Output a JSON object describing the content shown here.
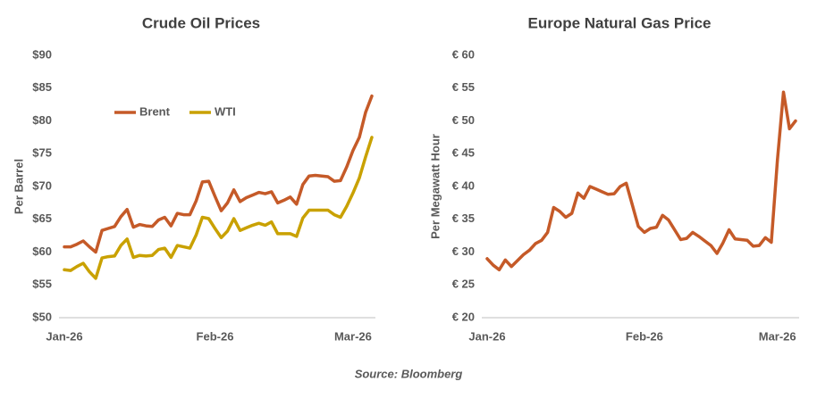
{
  "chart_data": [
    {
      "type": "line",
      "title": "Crude Oil Prices",
      "y_label": "Per Barrel",
      "categories": [
        "Jan-26",
        null,
        null,
        null,
        null,
        null,
        null,
        null,
        null,
        null,
        null,
        null,
        null,
        null,
        null,
        null,
        null,
        null,
        null,
        null,
        null,
        null,
        null,
        null,
        "Feb-26",
        null,
        null,
        null,
        null,
        null,
        null,
        null,
        null,
        null,
        null,
        null,
        null,
        null,
        null,
        null,
        null,
        null,
        null,
        null,
        null,
        null,
        "Mar-26",
        null,
        null,
        null
      ],
      "series": [
        {
          "name": "Brent",
          "color": "#c55a28",
          "values": [
            60.8,
            60.8,
            61.2,
            61.7,
            60.8,
            60.0,
            63.3,
            63.6,
            63.9,
            65.4,
            66.5,
            63.8,
            64.2,
            64.0,
            63.9,
            64.9,
            65.3,
            64.0,
            65.9,
            65.7,
            65.7,
            67.8,
            70.7,
            70.8,
            68.5,
            66.3,
            67.5,
            69.5,
            67.7,
            68.3,
            68.7,
            69.1,
            68.9,
            69.2,
            67.5,
            67.9,
            68.4,
            67.3,
            70.3,
            71.6,
            71.7,
            71.6,
            71.5,
            70.8,
            70.9,
            73.0,
            75.5,
            77.5,
            81.3,
            83.8
          ]
        },
        {
          "name": "WTI",
          "color": "#c9a100",
          "values": [
            57.3,
            57.2,
            57.8,
            58.3,
            57.0,
            56.0,
            59.1,
            59.3,
            59.4,
            61.0,
            62.0,
            59.2,
            59.5,
            59.4,
            59.5,
            60.4,
            60.6,
            59.2,
            61.0,
            60.8,
            60.6,
            62.6,
            65.3,
            65.1,
            63.6,
            62.2,
            63.2,
            65.1,
            63.3,
            63.7,
            64.1,
            64.4,
            64.1,
            64.6,
            62.8,
            62.8,
            62.8,
            62.4,
            65.2,
            66.4,
            66.4,
            66.4,
            66.4,
            65.7,
            65.3,
            67.0,
            69.0,
            71.3,
            74.5,
            77.5
          ]
        }
      ],
      "ylim": [
        50,
        90
      ],
      "yticks": [
        {
          "value": 50,
          "label": "$50"
        },
        {
          "value": 55,
          "label": "$55"
        },
        {
          "value": 60,
          "label": "$60"
        },
        {
          "value": 65,
          "label": "$65"
        },
        {
          "value": 70,
          "label": "$70"
        },
        {
          "value": 75,
          "label": "$75"
        },
        {
          "value": 80,
          "label": "$80"
        },
        {
          "value": 85,
          "label": "$85"
        },
        {
          "value": 90,
          "label": "$90"
        }
      ],
      "grid": false,
      "legend": "upper left"
    },
    {
      "type": "line",
      "title": "Europe Natural Gas Price",
      "y_label": "Per Megawatt Hour",
      "categories": [
        "Jan-26",
        null,
        null,
        null,
        null,
        null,
        null,
        null,
        null,
        null,
        null,
        null,
        null,
        null,
        null,
        null,
        null,
        null,
        null,
        null,
        null,
        null,
        null,
        null,
        null,
        null,
        "Feb-26",
        null,
        null,
        null,
        null,
        null,
        null,
        null,
        null,
        null,
        null,
        null,
        null,
        null,
        null,
        null,
        null,
        null,
        null,
        null,
        null,
        null,
        "Mar-26",
        null,
        null,
        null
      ],
      "series": [
        {
          "name": "Europe Natural Gas",
          "color": "#c55a28",
          "values": [
            29.0,
            28.0,
            27.3,
            28.8,
            27.8,
            28.7,
            29.6,
            30.3,
            31.3,
            31.8,
            33.0,
            36.8,
            36.2,
            35.3,
            35.9,
            39.0,
            38.2,
            40.0,
            39.6,
            39.2,
            38.8,
            38.9,
            40.0,
            40.5,
            37.2,
            33.9,
            33.0,
            33.6,
            33.8,
            35.6,
            34.9,
            33.4,
            31.9,
            32.1,
            33.0,
            32.4,
            31.7,
            31.0,
            29.8,
            31.4,
            33.4,
            32.0,
            31.9,
            31.8,
            30.9,
            31.0,
            32.2,
            31.5,
            44.0,
            54.4,
            48.8,
            50.0
          ]
        }
      ],
      "ylim": [
        20,
        60
      ],
      "yticks": [
        {
          "value": 20,
          "label": "€ 20"
        },
        {
          "value": 25,
          "label": "€ 25"
        },
        {
          "value": 30,
          "label": "€ 30"
        },
        {
          "value": 35,
          "label": "€ 35"
        },
        {
          "value": 40,
          "label": "€ 40"
        },
        {
          "value": 45,
          "label": "€ 45"
        },
        {
          "value": 50,
          "label": "€ 50"
        },
        {
          "value": 55,
          "label": "€ 55"
        },
        {
          "value": 60,
          "label": "€ 60"
        }
      ],
      "grid": false
    }
  ],
  "source": "Source: Bloomberg"
}
